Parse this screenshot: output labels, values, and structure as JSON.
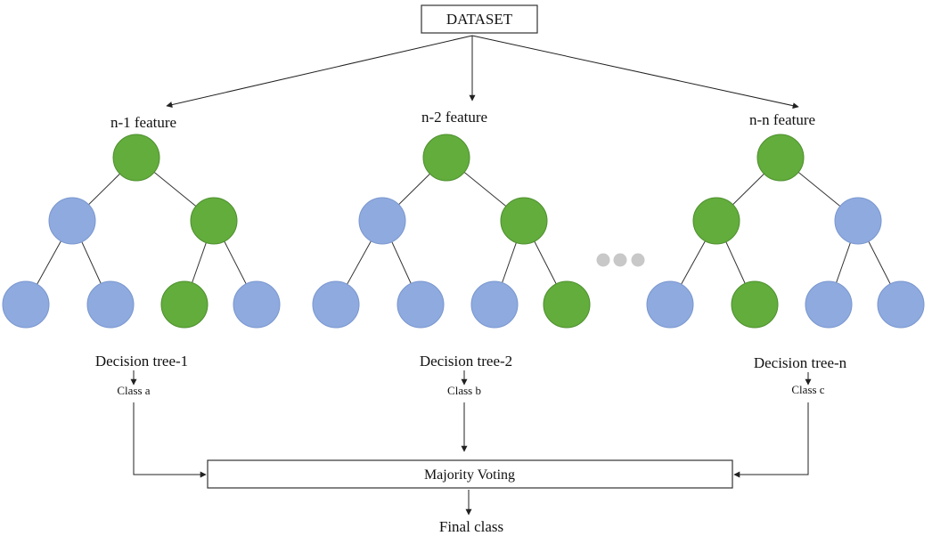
{
  "dataset_label": "DATASET",
  "colors": {
    "green": "#62ad3c",
    "green_stroke": "#4e8f2e",
    "blue": "#8eaadf",
    "blue_stroke": "#7a97cf",
    "ellipsis_dot": "#c8c8c8",
    "line": "#222222"
  },
  "trees": [
    {
      "feature_label": "n-1 feature",
      "tree_label": "Decision tree-1",
      "class_label": "Class a",
      "node_colors": [
        "green",
        "blue",
        "green",
        "blue",
        "blue",
        "green",
        "blue"
      ]
    },
    {
      "feature_label": "n-2 feature",
      "tree_label": "Decision tree-2",
      "class_label": "Class b",
      "node_colors": [
        "green",
        "blue",
        "green",
        "blue",
        "blue",
        "blue",
        "green"
      ]
    },
    {
      "feature_label": "n-n feature",
      "tree_label": "Decision tree-n",
      "class_label": "Class c",
      "node_colors": [
        "green",
        "green",
        "blue",
        "blue",
        "green",
        "blue",
        "blue"
      ]
    }
  ],
  "voting_label": "Majority Voting",
  "final_label": "Final class"
}
